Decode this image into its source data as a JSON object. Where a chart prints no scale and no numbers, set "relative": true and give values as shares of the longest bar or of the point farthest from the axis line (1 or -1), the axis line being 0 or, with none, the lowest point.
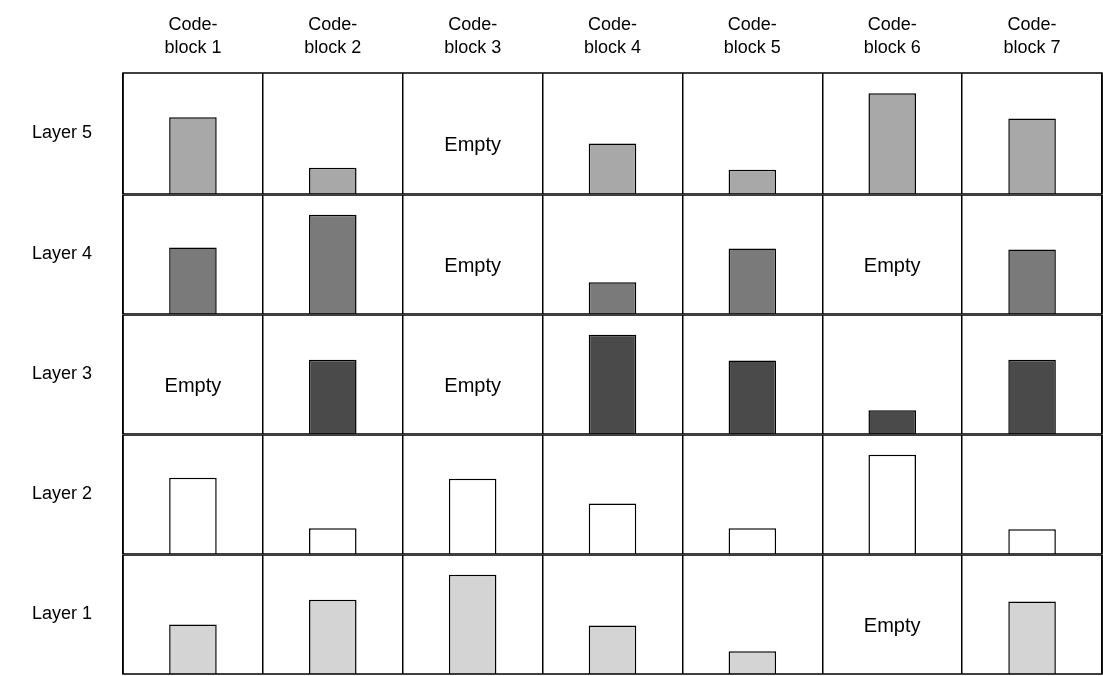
{
  "chart_data": [
    {
      "type": "bar",
      "ylabel": "Layer 5",
      "categories": [
        "Code-block 1",
        "Code-block 2",
        "Code-block 3",
        "Code-block 4",
        "Code-block 5",
        "Code-block 6",
        "Code-block 7"
      ],
      "values": [
        0.76,
        0.26,
        null,
        0.5,
        0.24,
        1,
        0.75
      ],
      "color": "#a8a8a8",
      "relative": true,
      "grid": "x",
      "tick_labels": "x",
      "annotations": [
        "Empty"
      ]
    },
    {
      "type": "bar",
      "ylabel": "Layer 4",
      "categories": [
        null,
        null,
        null,
        null,
        null,
        null,
        null
      ],
      "values": [
        0.67,
        1,
        null,
        0.32,
        0.66,
        null,
        0.65
      ],
      "color": "#7a7a7a",
      "relative": true,
      "grid": "x",
      "tick_labels": false,
      "annotations": [
        "Empty",
        "Empty"
      ]
    },
    {
      "type": "bar",
      "ylabel": "Layer 3",
      "categories": [
        null,
        null,
        null,
        null,
        null,
        null,
        null
      ],
      "values": [
        null,
        0.75,
        null,
        1,
        0.74,
        0.24,
        0.75
      ],
      "color": "#4a4a4a",
      "relative": true,
      "grid": "x",
      "tick_labels": false,
      "annotations": [
        "Empty",
        "Empty"
      ]
    },
    {
      "type": "bar",
      "ylabel": "Layer 2",
      "categories": [
        null,
        null,
        null,
        null,
        null,
        null,
        null
      ],
      "values": [
        0.77,
        0.26,
        0.76,
        0.51,
        0.26,
        1,
        0.25
      ],
      "color": "#ffffff",
      "relative": true,
      "grid": "x",
      "tick_labels": false
    },
    {
      "type": "bar",
      "ylabel": "Layer 1",
      "categories": [
        null,
        null,
        null,
        null,
        null,
        null,
        null
      ],
      "values": [
        0.5,
        0.75,
        1,
        0.49,
        0.23,
        null,
        0.73
      ],
      "color": "#d4d4d4",
      "relative": true,
      "grid": "x",
      "tick_labels": false,
      "annotations": [
        "Empty"
      ]
    }
  ]
}
